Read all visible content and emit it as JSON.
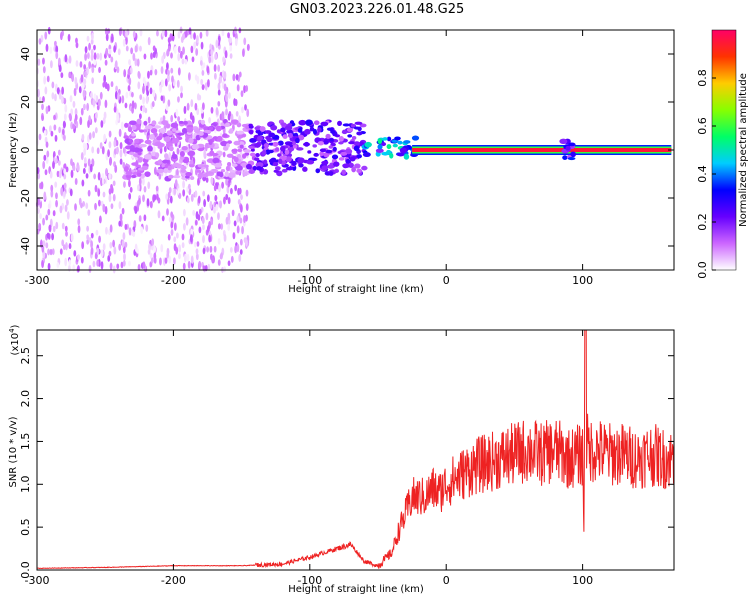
{
  "title": "GN03.2023.226.01.48.G25",
  "chart_data": [
    {
      "type": "heatmap",
      "xlabel": "Height of straight line (km)",
      "ylabel": "Frequency (Hz)",
      "xlim": [
        -300,
        167
      ],
      "ylim": [
        -50,
        50
      ],
      "xticks": [
        -300,
        -200,
        -100,
        0,
        100
      ],
      "yticks": [
        -40,
        -20,
        0,
        20,
        40
      ],
      "grid": false,
      "colorbar": {
        "label": "Normalized spectral amplitude",
        "range": [
          0,
          1
        ],
        "ticks": [
          "0.0",
          "0.2",
          "0.4",
          "0.6",
          "0.8"
        ],
        "colors": [
          "#ffffff",
          "#cc66ff",
          "#6600ff",
          "#0000ff",
          "#00ccff",
          "#00ff66",
          "#88ff00",
          "#ffcc00",
          "#ff3300",
          "#ff0066"
        ]
      },
      "regions": [
        {
          "x_range": [
            -300,
            -145
          ],
          "y_range": [
            -50,
            50
          ],
          "amplitude": 0.05,
          "pattern": "broadband"
        },
        {
          "x_range": [
            -235,
            -145
          ],
          "y_range": [
            -12,
            12
          ],
          "amplitude": 0.12
        },
        {
          "x_range": [
            -145,
            -60
          ],
          "y_range": [
            -10,
            12
          ],
          "amplitude": 0.25
        },
        {
          "x_range": [
            -60,
            -22
          ],
          "y_range": [
            -3,
            5
          ],
          "amplitude": 0.45
        },
        {
          "x_range": [
            -25,
            165
          ],
          "y_range": [
            -2,
            2
          ],
          "amplitude": 0.95
        },
        {
          "x_range": [
            85,
            95
          ],
          "y_range": [
            -4,
            4
          ],
          "amplitude": 0.3
        }
      ]
    },
    {
      "type": "line",
      "xlabel": "Height of straight line (km)",
      "ylabel": "SNR (10 * v/v)",
      "y_scale_label": "(x10",
      "y_scale_exp": "4",
      "y_scale_close": ")",
      "xlim": [
        -300,
        167
      ],
      "ylim": [
        0,
        2.8
      ],
      "xticks": [
        -300,
        -200,
        -100,
        0,
        100
      ],
      "yticks": [
        "0.0",
        "0.5",
        "1.0",
        "1.5",
        "2.0",
        "2.5"
      ],
      "grid": false,
      "series": [
        {
          "color": "#ee2222",
          "x": [
            -300,
            -250,
            -200,
            -150,
            -120,
            -100,
            -80,
            -70,
            -65,
            -60,
            -50,
            -40,
            -35,
            -30,
            -25,
            -20,
            -15,
            -10,
            -5,
            0,
            10,
            20,
            30,
            40,
            50,
            60,
            70,
            80,
            90,
            100,
            101,
            102,
            103,
            104,
            105,
            110,
            120,
            130,
            140,
            150,
            160,
            167
          ],
          "y": [
            0.02,
            0.03,
            0.05,
            0.05,
            0.07,
            0.15,
            0.25,
            0.3,
            0.2,
            0.1,
            0.05,
            0.2,
            0.45,
            0.65,
            0.85,
            0.85,
            0.85,
            0.95,
            0.9,
            1.0,
            1.1,
            1.2,
            1.25,
            1.3,
            1.35,
            1.4,
            1.35,
            1.4,
            1.3,
            1.35,
            0.45,
            2.8,
            1.5,
            1.4,
            1.4,
            1.4,
            1.35,
            1.35,
            1.3,
            1.35,
            1.3,
            1.3
          ]
        }
      ]
    }
  ]
}
